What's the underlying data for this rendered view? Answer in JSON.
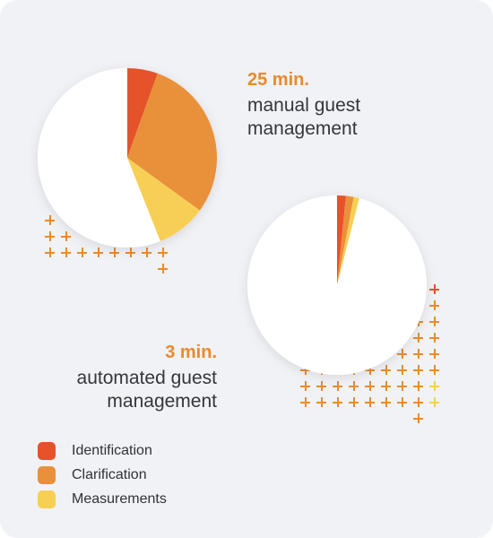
{
  "colors": {
    "identification": "#e5532a",
    "clarification": "#e8913a",
    "measurements": "#f7cf55",
    "remainder": "#ffffff",
    "plus_orange": "#ec8a2c",
    "plus_red": "#e5532a",
    "plus_yellow": "#f7cf55",
    "background": "#f1f2f6"
  },
  "manual": {
    "value_label": "25 min.",
    "line1": "manual guest",
    "line2": "management"
  },
  "automated": {
    "value_label": "3 min.",
    "line1": "automated guest",
    "line2": "management"
  },
  "legend": [
    {
      "label": "Identification",
      "color_key": "identification"
    },
    {
      "label": "Clarification",
      "color_key": "clarification"
    },
    {
      "label": "Measurements",
      "color_key": "measurements"
    }
  ],
  "chart_data": [
    {
      "type": "pie",
      "title": "",
      "slices": [
        {
          "label": "Identification",
          "value": 5.5
        },
        {
          "label": "Clarification",
          "value": 29.5
        },
        {
          "label": "Measurements",
          "value": 9
        },
        {
          "label": "",
          "value": 56
        }
      ]
    },
    {
      "type": "pie",
      "title": "",
      "slices": [
        {
          "label": "Identification",
          "value": 1.6
        },
        {
          "label": "Clarification",
          "value": 1.4
        },
        {
          "label": "Measurements",
          "value": 1.0
        },
        {
          "label": "",
          "value": 96
        }
      ]
    }
  ]
}
